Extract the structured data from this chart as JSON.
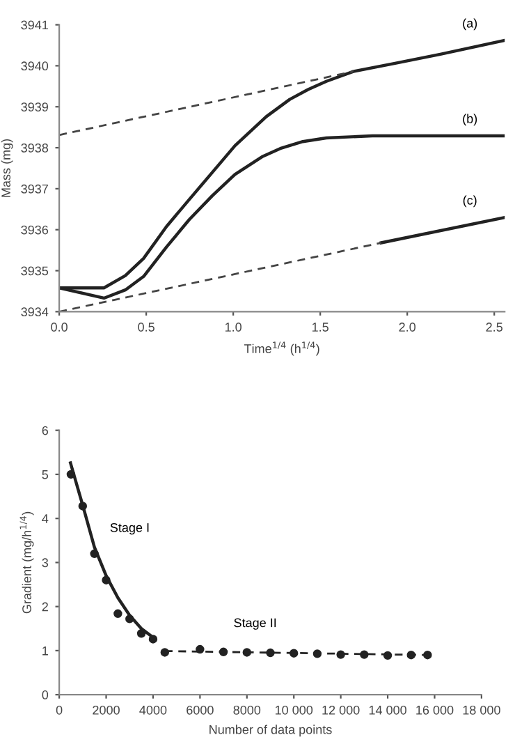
{
  "chart_data": [
    {
      "type": "line",
      "xlabel": "Time$^{1/4}$ (h$^{1/4}$)",
      "ylabel": "Mass (mg)",
      "xlim": [
        0,
        2.56
      ],
      "ylim": [
        3934,
        3941
      ],
      "xticks": [
        {
          "value": 0,
          "label": "0.0"
        },
        0.5,
        {
          "value": 1,
          "label": "1.0"
        },
        1.5,
        {
          "value": 2,
          "label": "2.0"
        },
        2.5
      ],
      "yticks": [
        3934,
        3935,
        3936,
        3937,
        3938,
        3939,
        3940,
        3941
      ],
      "grid": false,
      "legend": false,
      "marker": "none",
      "series": [
        {
          "name": "(a)",
          "color": "#222222",
          "line_style": "solid",
          "x": [
            0,
            0.257,
            0.38,
            0.485,
            0.617,
            0.748,
            0.88,
            1.01,
            1.19,
            1.325,
            1.43,
            1.535,
            1.69,
            1.93,
            2.19,
            2.56
          ],
          "values": [
            3934.58,
            3934.58,
            3934.88,
            3935.3,
            3936.08,
            3936.74,
            3937.4,
            3938.05,
            3938.76,
            3939.18,
            3939.42,
            3939.62,
            3939.86,
            3940.06,
            3940.28,
            3940.62
          ]
        },
        {
          "name": "(b)",
          "color": "#222222",
          "line_style": "solid",
          "x": [
            0,
            0.257,
            0.38,
            0.485,
            0.617,
            0.748,
            0.88,
            1.01,
            1.17,
            1.27,
            1.4,
            1.535,
            1.8,
            2.56
          ],
          "values": [
            3934.58,
            3934.33,
            3934.53,
            3934.86,
            3935.58,
            3936.25,
            3936.83,
            3937.35,
            3937.79,
            3937.98,
            3938.15,
            3938.24,
            3938.29,
            3938.29
          ]
        },
        {
          "name": "(c)",
          "color": "#222222",
          "line_style": "solid",
          "x": [
            1.85,
            2.56
          ],
          "values": [
            3935.68,
            3936.3
          ]
        },
        {
          "color": "#444444",
          "line_style": "dashed",
          "x": [
            0,
            1.69
          ],
          "values": [
            3938.31,
            3939.86
          ]
        },
        {
          "color": "#444444",
          "line_style": "dashed",
          "x": [
            0,
            1.85
          ],
          "values": [
            3934.0,
            3935.68
          ]
        }
      ]
    },
    {
      "type": "scatter",
      "xlabel": "Number of data points",
      "ylabel": "Gradient (mg/h$^{1/4}$)",
      "xlim": [
        0,
        18000
      ],
      "ylim": [
        0,
        6
      ],
      "xticks": [
        0,
        2000,
        4000,
        6000,
        8000,
        {
          "value": 10000,
          "label": "10 000"
        },
        {
          "value": 12000,
          "label": "12 000"
        },
        {
          "value": 14000,
          "label": "14 000"
        },
        {
          "value": 16000,
          "label": "16 000"
        },
        {
          "value": 18000,
          "label": "18 000"
        }
      ],
      "yticks": [
        0,
        1,
        2,
        3,
        4,
        5,
        6
      ],
      "grid": false,
      "legend": false,
      "marker": "circle",
      "annotations": [
        "Stage I",
        "Stage II"
      ],
      "series": [
        {
          "color": "#222222",
          "x": [
            500,
            1000,
            1500,
            2000,
            2500,
            3000,
            3500,
            4000,
            4500,
            6000,
            7000,
            8000,
            9000,
            10000,
            11000,
            12000,
            13000,
            14000,
            15000,
            15700
          ],
          "values": [
            5.0,
            4.28,
            3.2,
            2.6,
            1.84,
            1.72,
            1.39,
            1.26,
            0.96,
            1.03,
            0.97,
            0.96,
            0.95,
            0.94,
            0.93,
            0.91,
            0.91,
            0.89,
            0.9,
            0.9
          ]
        },
        {
          "type": "line",
          "color": "#222222",
          "line_style": "solid",
          "marker": "none",
          "x": [
            480,
            1000,
            1500,
            2000,
            2500,
            3000,
            3500,
            4000
          ],
          "values": [
            5.26,
            4.3,
            3.35,
            2.7,
            2.2,
            1.8,
            1.5,
            1.3
          ]
        },
        {
          "type": "line",
          "color": "#222222",
          "line_style": "dashed",
          "marker": "none",
          "x": [
            4500,
            15700
          ],
          "values": [
            0.99,
            0.9
          ]
        }
      ]
    }
  ]
}
